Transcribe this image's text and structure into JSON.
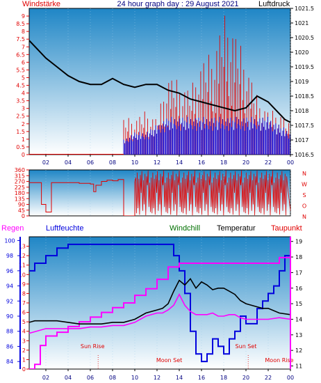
{
  "colors": {
    "red": "#e00000",
    "blue": "#0000dd",
    "black": "#000000",
    "magenta": "#ff00ff",
    "navy": "#000080",
    "green": "#007000",
    "bg_top": "#1f86c6",
    "bg_bottom": "#ffffff"
  },
  "chart_data": [
    {
      "type": "line",
      "title": "24 hour graph day : 29 August 2021",
      "left_label": "Windstärke",
      "right_label": "Luftdruck",
      "x_ticks": [
        "02",
        "04",
        "06",
        "08",
        "10",
        "12",
        "14",
        "16",
        "18",
        "20",
        "22",
        "00"
      ],
      "x_range_hours": [
        0.5,
        24
      ],
      "left_axis": {
        "min": 0,
        "max": 9.5,
        "ticks": [
          "0",
          "0.5",
          "1",
          "1.5",
          "2",
          "2.5",
          "3",
          "3.5",
          "4",
          "4.5",
          "5",
          "5.5",
          "6",
          "6.5",
          "7",
          "7.5",
          "8",
          "8.5",
          "9"
        ]
      },
      "right_axis": {
        "min": 1016.5,
        "max": 1021.5,
        "ticks": [
          "1016.5",
          "1017",
          "1017.5",
          "1018",
          "1018.5",
          "1019",
          "1019.5",
          "1020",
          "1020.5",
          "1021",
          "1021.5"
        ]
      },
      "series": [
        {
          "name": "Luftdruck",
          "x": [
            0.5,
            1,
            2,
            3,
            4,
            5,
            6,
            7,
            8,
            9,
            10,
            11,
            12,
            13,
            14,
            15,
            16,
            17,
            18,
            19,
            20,
            21,
            22,
            23,
            23.5,
            24
          ],
          "y": [
            1020.4,
            1020.2,
            1019.8,
            1019.5,
            1019.2,
            1019.0,
            1018.9,
            1018.9,
            1019.1,
            1018.9,
            1018.8,
            1018.9,
            1018.9,
            1018.7,
            1018.6,
            1018.4,
            1018.3,
            1018.2,
            1018.1,
            1018.0,
            1018.1,
            1018.5,
            1018.3,
            1017.9,
            1017.7,
            1017.6
          ]
        },
        {
          "name": "Windstärke gust max",
          "x": [
            9,
            10,
            11,
            12,
            13,
            14,
            15,
            16,
            17,
            18,
            18.5,
            19,
            20,
            21,
            22,
            23,
            24
          ],
          "y": [
            2.5,
            2.5,
            3,
            2.5,
            5.5,
            5,
            4.5,
            6.5,
            7,
            9.5,
            9.5,
            8.5,
            6.5,
            4,
            3,
            3,
            2
          ]
        },
        {
          "name": "Windstärke average",
          "x": [
            9,
            10,
            11,
            12,
            13,
            14,
            15,
            16,
            17,
            18,
            19,
            20,
            21,
            22,
            23,
            24
          ],
          "y": [
            1,
            1.5,
            1.5,
            2,
            2.5,
            2.5,
            2.5,
            2.5,
            2.5,
            2.5,
            2.5,
            2.5,
            2.5,
            2.5,
            2,
            1.5
          ]
        }
      ]
    },
    {
      "type": "line",
      "title": "",
      "left_axis": {
        "min": 0,
        "max": 360,
        "ticks": [
          "0",
          "45",
          "90",
          "135",
          "180",
          "225",
          "270",
          "315",
          "360"
        ]
      },
      "right_labels": [
        "N",
        "W",
        "S",
        "O",
        "N"
      ],
      "x_range_hours": [
        0.5,
        24
      ],
      "series": [
        {
          "name": "",
          "x": [
            0.5,
            1.5,
            1.6,
            2,
            2.5,
            3,
            3.5,
            4,
            4.5,
            5,
            5.5,
            6,
            6.3,
            6.5,
            7,
            7.5,
            8,
            8.5,
            9,
            9.5,
            10,
            24
          ],
          "y": [
            260,
            260,
            90,
            30,
            260,
            260,
            260,
            260,
            260,
            255,
            255,
            250,
            190,
            240,
            270,
            280,
            275,
            285,
            0,
            0,
            270,
            40
          ]
        }
      ]
    },
    {
      "type": "line",
      "title": "",
      "labels": {
        "regen": "Regen",
        "luftfeuchte": "Luftfeuchte",
        "windchill": "Windchill",
        "temperatur": "Temperatur",
        "taupunkt": "Taupunkt"
      },
      "left_axis_regen": {
        "min": 0,
        "max": 14,
        "ticks": [
          "0",
          "1",
          "2",
          "3",
          "4",
          "5",
          "6",
          "7",
          "8",
          "9",
          "10",
          "11",
          "12",
          "13"
        ]
      },
      "left_axis_humidity": {
        "min": 83,
        "max": 100.5,
        "ticks": [
          "84",
          "86",
          "88",
          "90",
          "92",
          "94",
          "96",
          "98",
          "100"
        ]
      },
      "right_axis_temp": {
        "min": 10.8,
        "max": 19.3,
        "ticks": [
          "11",
          "12",
          "13",
          "14",
          "15",
          "16",
          "17",
          "18",
          "19"
        ]
      },
      "x_ticks": [
        "02",
        "04",
        "06",
        "08",
        "10",
        "12",
        "14",
        "16",
        "18",
        "20",
        "22",
        "00"
      ],
      "x_range_hours": [
        0.5,
        24
      ],
      "annotations": {
        "sun_rise": "Sun Rise",
        "sun_set": "Sun Set",
        "moon_set": "Moon Set",
        "moon_rise": "Moon Rise"
      },
      "series": [
        {
          "name": "Luftfeuchte",
          "x": [
            0.5,
            1,
            1.5,
            2,
            2.5,
            3,
            3.5,
            4,
            5,
            6,
            7,
            8,
            9,
            10,
            11,
            12,
            13,
            13.5,
            14,
            14.5,
            15,
            15.5,
            16,
            16.5,
            17,
            17.5,
            18,
            18.5,
            19,
            19.5,
            20,
            20.5,
            21,
            21.5,
            22,
            22.5,
            23,
            23.5,
            24
          ],
          "y": [
            96,
            97,
            97,
            98,
            98,
            99,
            99,
            99.5,
            99.5,
            99.5,
            99.5,
            99.5,
            99.5,
            99.5,
            99.5,
            99.5,
            99.5,
            98,
            96,
            93,
            88,
            85,
            84,
            85,
            87,
            86,
            85,
            87,
            88,
            90,
            89,
            89,
            91,
            92,
            93,
            94,
            96,
            98,
            99
          ]
        },
        {
          "name": "Regen",
          "x": [
            0.5,
            1,
            1.5,
            2,
            3,
            4,
            5,
            6,
            7,
            8,
            9,
            10,
            11,
            12,
            13,
            14,
            15,
            16,
            17,
            18,
            19,
            20,
            21,
            22,
            23,
            24
          ],
          "y": [
            0,
            0.5,
            2.5,
            3.5,
            3.9,
            4.5,
            5,
            5.5,
            6,
            6.5,
            7,
            7.8,
            8.5,
            9.5,
            10.8,
            11.2,
            11.2,
            11.2,
            11.2,
            11.2,
            11.2,
            11.2,
            11.2,
            11.2,
            11.8,
            12.8
          ]
        },
        {
          "name": "Temperatur",
          "x": [
            0.5,
            1,
            2,
            3,
            4,
            5,
            6,
            7,
            8,
            9,
            10,
            11,
            12,
            12.5,
            13,
            13.5,
            14,
            14.5,
            15,
            15.5,
            16,
            16.5,
            17,
            17.5,
            18,
            18.5,
            19,
            19.5,
            20,
            20.5,
            21,
            21.5,
            22,
            23,
            24
          ],
          "y": [
            13.8,
            13.9,
            13.9,
            13.9,
            13.8,
            13.7,
            13.7,
            13.7,
            13.8,
            13.8,
            14.0,
            14.4,
            14.6,
            14.7,
            15.0,
            15.8,
            16.5,
            16.2,
            16.6,
            16.0,
            16.4,
            16.2,
            15.9,
            16.0,
            16.0,
            15.8,
            15.6,
            15.2,
            15.0,
            14.9,
            14.8,
            14.7,
            14.7,
            14.4,
            14.3
          ]
        },
        {
          "name": "Taupunkt",
          "x": [
            0.5,
            1,
            2,
            3,
            4,
            5,
            6,
            7,
            8,
            9,
            10,
            11,
            12,
            12.5,
            13,
            13.5,
            14,
            14.5,
            15,
            15.5,
            16,
            16.5,
            17,
            17.5,
            18,
            18.5,
            19,
            19.5,
            20,
            20.5,
            21,
            22,
            23,
            24
          ],
          "y": [
            13.1,
            13.2,
            13.4,
            13.4,
            13.4,
            13.4,
            13.5,
            13.5,
            13.6,
            13.6,
            13.8,
            14.2,
            14.4,
            14.4,
            14.6,
            14.9,
            15.6,
            14.9,
            14.5,
            14.3,
            14.3,
            14.3,
            14.4,
            14.2,
            14.2,
            14.3,
            14.3,
            14.1,
            14.0,
            14.0,
            14.0,
            14.0,
            14.1,
            14.0
          ]
        }
      ]
    }
  ]
}
